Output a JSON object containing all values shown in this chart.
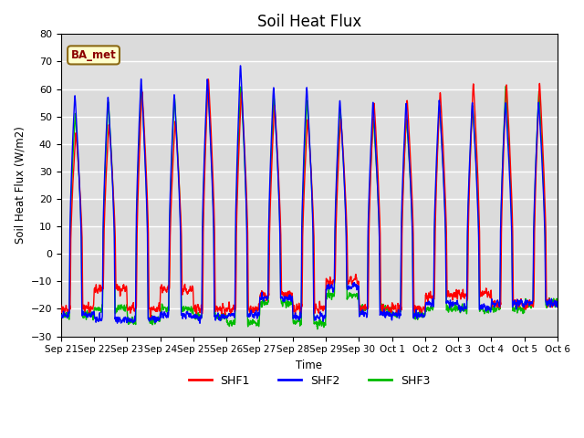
{
  "title": "Soil Heat Flux",
  "ylabel": "Soil Heat Flux (W/m2)",
  "xlabel": "Time",
  "ylim": [
    -30,
    80
  ],
  "yticks": [
    -30,
    -20,
    -10,
    0,
    10,
    20,
    30,
    40,
    50,
    60,
    70,
    80
  ],
  "annotation": "BA_met",
  "annotation_color": "#8B0000",
  "annotation_bg": "#FFFFCC",
  "line_colors": [
    "#FF0000",
    "#0000FF",
    "#00BB00"
  ],
  "legend_labels": [
    "SHF1",
    "SHF2",
    "SHF3"
  ],
  "bg_color": "#E0E0E0",
  "n_days": 15,
  "title_fontsize": 12,
  "tick_labels": [
    "Sep 21",
    "Sep 22",
    "Sep 23",
    "Sep 24",
    "Sep 25",
    "Sep 26",
    "Sep 27",
    "Sep 28",
    "Sep 29",
    "Sep 30",
    "Oct 1",
    "Oct 2",
    "Oct 3",
    "Oct 4",
    "Oct 5",
    "Oct 6"
  ],
  "day_peaks_shf2": [
    59,
    58,
    65,
    59,
    65,
    70,
    62,
    62,
    57,
    56,
    56,
    57,
    56,
    56,
    56
  ],
  "day_peaks_shf1": [
    45,
    48,
    60,
    49,
    65,
    60,
    55,
    50,
    50,
    56,
    57,
    60,
    63,
    63,
    63
  ],
  "day_peaks_shf3": [
    52,
    56,
    62,
    58,
    63,
    62,
    58,
    57,
    54,
    50,
    50,
    55,
    55,
    62,
    60
  ],
  "night_shf1": [
    -20,
    -13,
    -20,
    -13,
    -20,
    -20,
    -15,
    -20,
    -10,
    -20,
    -20,
    -15,
    -15,
    -18,
    -18
  ],
  "night_shf2": [
    -22,
    -24,
    -24,
    -22,
    -23,
    -22,
    -16,
    -23,
    -12,
    -22,
    -22,
    -18,
    -20,
    -18,
    -18
  ],
  "night_shf3": [
    -22,
    -20,
    -24,
    -20,
    -23,
    -25,
    -18,
    -25,
    -15,
    -20,
    -22,
    -20,
    -20,
    -20,
    -18
  ]
}
